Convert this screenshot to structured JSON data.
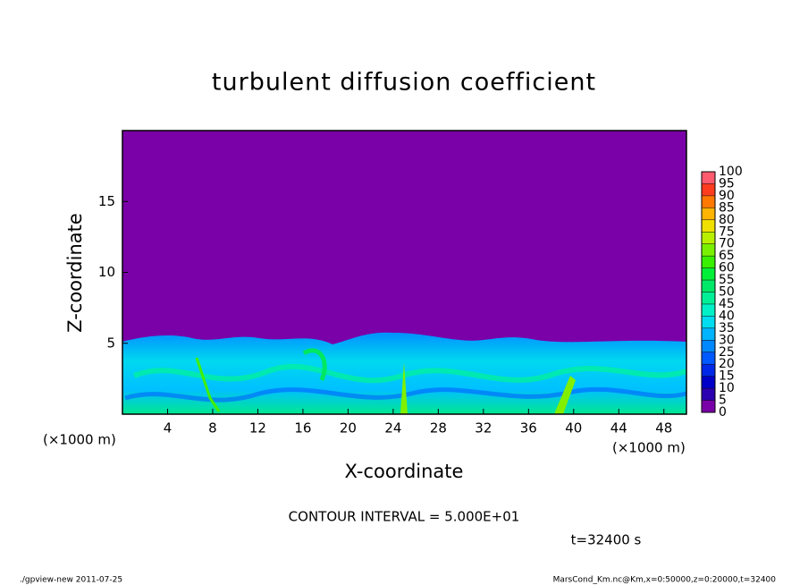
{
  "chart_data": {
    "type": "contour",
    "title": "turbulent diffusion coefficient",
    "xlabel": "X-coordinate",
    "ylabel": "Z-coordinate",
    "xunit": "(×1000 m)",
    "xlim": [
      0,
      50
    ],
    "ylim": [
      0,
      20
    ],
    "xticks": [
      4,
      8,
      12,
      16,
      20,
      24,
      28,
      32,
      36,
      40,
      44,
      48
    ],
    "yticks": [
      5,
      10,
      15
    ],
    "colorbar": {
      "levels": [
        0,
        5,
        10,
        15,
        20,
        25,
        30,
        35,
        40,
        45,
        50,
        55,
        60,
        65,
        70,
        75,
        80,
        85,
        90,
        95,
        100
      ],
      "colors": [
        "#7a00a8",
        "#2a00b0",
        "#0000c8",
        "#0028e8",
        "#0058ff",
        "#0088ff",
        "#00b4ff",
        "#00dcf0",
        "#00f0c8",
        "#00f098",
        "#00e868",
        "#00f038",
        "#38f000",
        "#78f000",
        "#b8f000",
        "#f0e000",
        "#ffb400",
        "#ff7800",
        "#ff3c1e",
        "#ff5a6e"
      ]
    },
    "contour_interval": "CONTOUR INTERVAL = 5.000E+01",
    "time_label": "t=32400 s",
    "footer_left": "./gpview-new  2011-07-25",
    "footer_right": "MarsCond_Km.nc@Km,x=0:50000,z=0:20000,t=32400"
  }
}
